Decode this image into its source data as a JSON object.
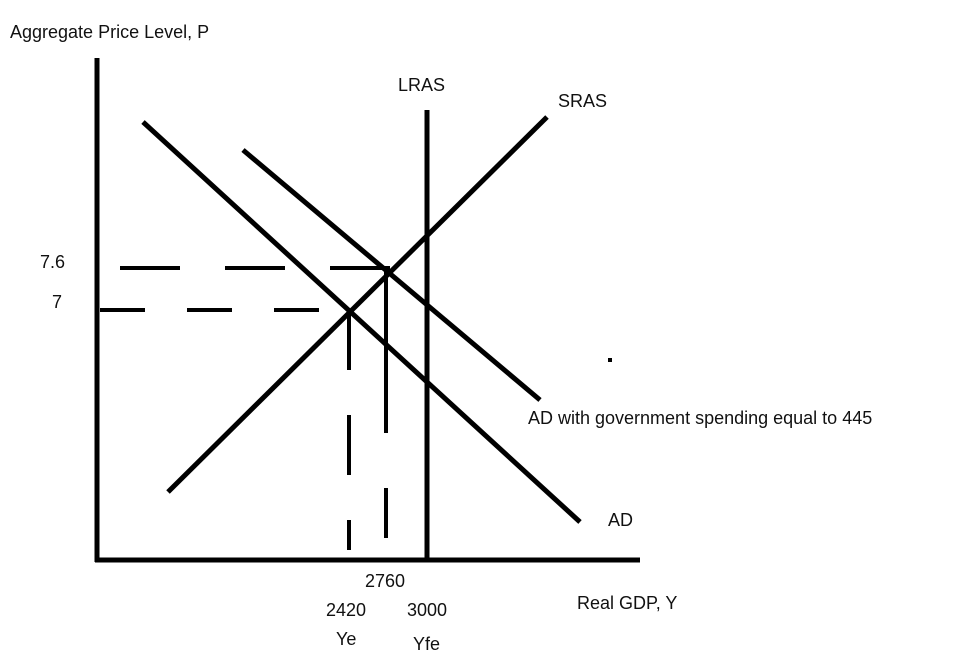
{
  "axes": {
    "y_label": "Aggregate Price Level, P",
    "x_label": "Real GDP, Y"
  },
  "curves": {
    "lras": "LRAS",
    "sras": "SRAS",
    "ad": "AD",
    "ad_new": "AD with government spending equal to 445"
  },
  "price_labels": [
    7.6,
    7
  ],
  "gdp_labels": [
    2760,
    2420,
    3000
  ],
  "output_labels": [
    "Ye",
    "Yfe"
  ]
}
